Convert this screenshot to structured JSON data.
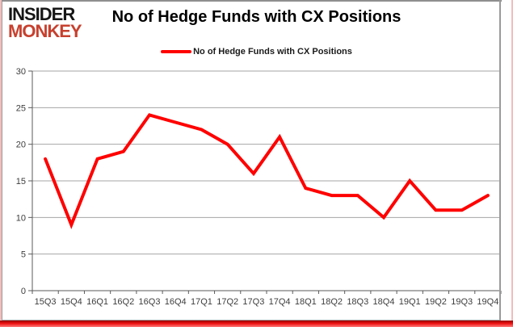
{
  "logo": {
    "line1": "INSIDER",
    "line2": "MONKEY"
  },
  "title": "No of Hedge Funds with CX Positions",
  "legend": {
    "label": "No of Hedge Funds with CX Positions"
  },
  "colors": {
    "line": "#ff0000",
    "logo_accent": "#c7402e",
    "gridline": "#a6a6a6",
    "axis": "#595959",
    "tick_label": "#3d3d3d",
    "bottom_bar": "#ee1111",
    "frame_pink": "#f2bdbd"
  },
  "chart_data": {
    "type": "line",
    "categories": [
      "15Q3",
      "15Q4",
      "16Q1",
      "16Q2",
      "16Q3",
      "16Q4",
      "17Q1",
      "17Q2",
      "17Q3",
      "17Q4",
      "18Q1",
      "18Q2",
      "18Q3",
      "18Q4",
      "19Q1",
      "19Q2",
      "19Q3",
      "19Q4"
    ],
    "series": [
      {
        "name": "No of Hedge Funds with CX Positions",
        "color": "#ff0000",
        "values": [
          18,
          9,
          18,
          19,
          24,
          23,
          22,
          20,
          16,
          21,
          14,
          13,
          13,
          10,
          15,
          11,
          11,
          13
        ]
      }
    ],
    "title": "No of Hedge Funds with CX Positions",
    "xlabel": "",
    "ylabel": "",
    "ylim": [
      0,
      30
    ],
    "ytick_interval": 5,
    "grid": true,
    "legend_position": "top"
  }
}
